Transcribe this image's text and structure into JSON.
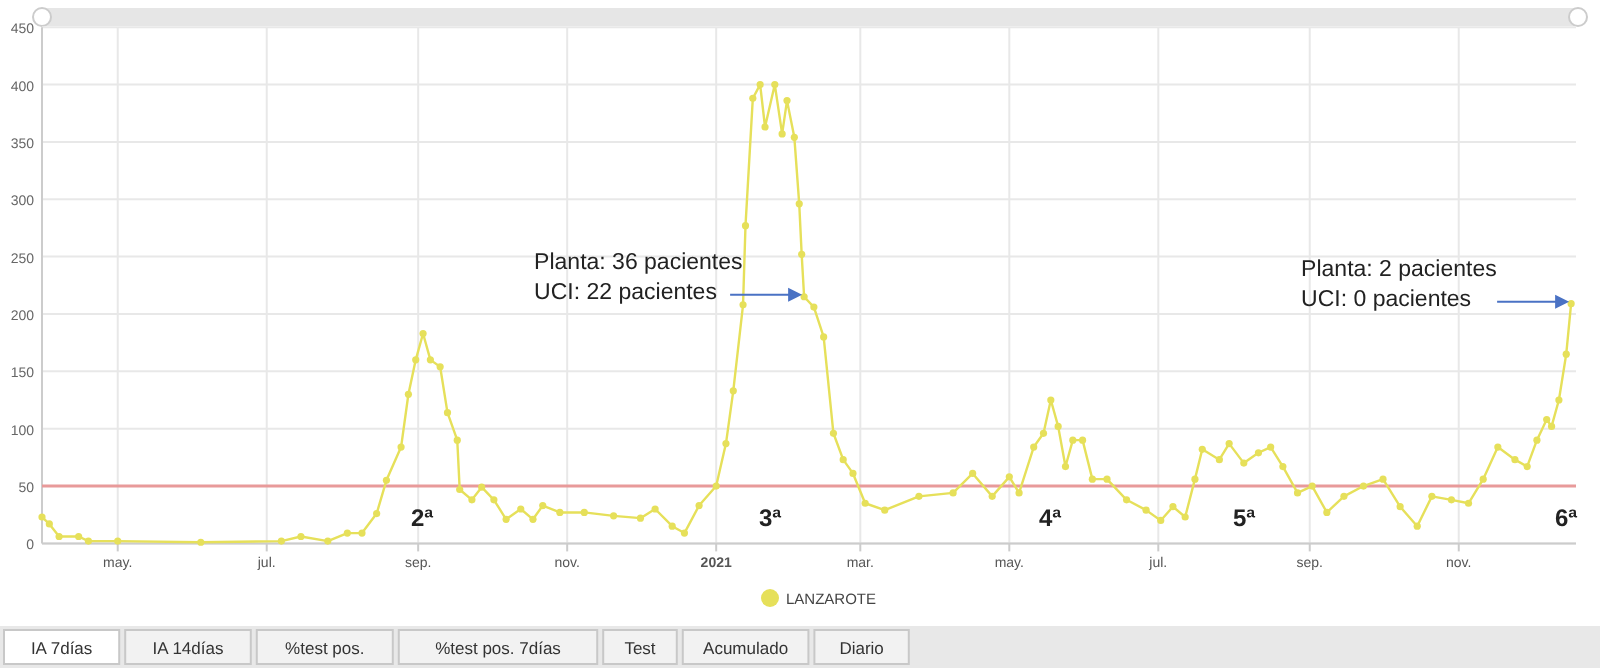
{
  "chart_data": {
    "type": "line",
    "xlim": [
      "2020-03-31",
      "2021-12-19"
    ],
    "ylim": [
      0,
      450
    ],
    "xticks": [
      {
        "value": "2020-05-01",
        "label": "may."
      },
      {
        "value": "2020-07-01",
        "label": "jul."
      },
      {
        "value": "2020-09-01",
        "label": "sep."
      },
      {
        "value": "2020-11-01",
        "label": "nov."
      },
      {
        "value": "2021-01-01",
        "label": "2021"
      },
      {
        "value": "2021-03-01",
        "label": "mar."
      },
      {
        "value": "2021-05-01",
        "label": "may."
      },
      {
        "value": "2021-07-01",
        "label": "jul."
      },
      {
        "value": "2021-09-01",
        "label": "sep."
      },
      {
        "value": "2021-11-01",
        "label": "nov."
      }
    ],
    "yticks": [
      0,
      50,
      100,
      150,
      200,
      250,
      300,
      350,
      400,
      450
    ],
    "grid": true,
    "legend": "bottom",
    "marker": "circle",
    "ref_lines": [
      {
        "axis": "y",
        "value": 50,
        "color": "#e89a9a"
      }
    ],
    "series": [
      {
        "name": "LANZAROTE",
        "color": "#e6e05a",
        "x": [
          "2020-03-31",
          "2020-04-03",
          "2020-04-07",
          "2020-04-15",
          "2020-04-19",
          "2020-05-01",
          "2020-06-04",
          "2020-07-07",
          "2020-07-15",
          "2020-07-26",
          "2020-08-03",
          "2020-08-09",
          "2020-08-15",
          "2020-08-19",
          "2020-08-25",
          "2020-08-28",
          "2020-08-31",
          "2020-09-03",
          "2020-09-06",
          "2020-09-10",
          "2020-09-13",
          "2020-09-17",
          "2020-09-18",
          "2020-09-23",
          "2020-09-27",
          "2020-10-02",
          "2020-10-07",
          "2020-10-13",
          "2020-10-18",
          "2020-10-22",
          "2020-10-29",
          "2020-11-08",
          "2020-11-20",
          "2020-12-01",
          "2020-12-07",
          "2020-12-14",
          "2020-12-19",
          "2020-12-25",
          "2021-01-01",
          "2021-01-05",
          "2021-01-08",
          "2021-01-12",
          "2021-01-13",
          "2021-01-16",
          "2021-01-19",
          "2021-01-21",
          "2021-01-25",
          "2021-01-28",
          "2021-01-30",
          "2021-02-02",
          "2021-02-04",
          "2021-02-05",
          "2021-02-06",
          "2021-02-10",
          "2021-02-14",
          "2021-02-18",
          "2021-02-22",
          "2021-02-26",
          "2021-03-03",
          "2021-03-11",
          "2021-03-25",
          "2021-04-08",
          "2021-04-16",
          "2021-04-24",
          "2021-05-01",
          "2021-05-05",
          "2021-05-11",
          "2021-05-15",
          "2021-05-18",
          "2021-05-21",
          "2021-05-24",
          "2021-05-27",
          "2021-05-31",
          "2021-06-04",
          "2021-06-10",
          "2021-06-18",
          "2021-06-26",
          "2021-07-02",
          "2021-07-07",
          "2021-07-12",
          "2021-07-16",
          "2021-07-19",
          "2021-07-26",
          "2021-07-30",
          "2021-08-05",
          "2021-08-11",
          "2021-08-16",
          "2021-08-21",
          "2021-08-27",
          "2021-09-02",
          "2021-09-08",
          "2021-09-15",
          "2021-09-23",
          "2021-10-01",
          "2021-10-08",
          "2021-10-15",
          "2021-10-21",
          "2021-10-29",
          "2021-11-05",
          "2021-11-11",
          "2021-11-17",
          "2021-11-24",
          "2021-11-29",
          "2021-12-03",
          "2021-12-07",
          "2021-12-09",
          "2021-12-12",
          "2021-12-15",
          "2021-12-17"
        ],
        "values": [
          23,
          17,
          6,
          6,
          2,
          2,
          1,
          2,
          6,
          2,
          9,
          9,
          26,
          55,
          84,
          130,
          160,
          183,
          160,
          154,
          114,
          90,
          47,
          38,
          49,
          38,
          21,
          30,
          21,
          33,
          27,
          27,
          24,
          22,
          30,
          15,
          9,
          33,
          50,
          87,
          133,
          208,
          277,
          388,
          400,
          363,
          400,
          357,
          386,
          354,
          296,
          252,
          215,
          206,
          180,
          96,
          73,
          61,
          35,
          29,
          41,
          44,
          61,
          41,
          58,
          44,
          84,
          96,
          125,
          102,
          67,
          90,
          90,
          56,
          56,
          38,
          29,
          20,
          32,
          23,
          56,
          82,
          73,
          87,
          70,
          79,
          84,
          67,
          44,
          50,
          27,
          41,
          50,
          56,
          32,
          15,
          41,
          38,
          35,
          56,
          84,
          73,
          67,
          90,
          108,
          102,
          125,
          165,
          209
        ]
      }
    ],
    "annotations": [
      {
        "text": "Planta: 36 pacientes\nUCI: 22 pacientes",
        "x": "2021-02-06",
        "y": 215
      },
      {
        "text": "Planta: 2 pacientes\nUCI: 0 pacientes",
        "x": "2021-12-17",
        "y": 209
      },
      "2ª",
      "3ª",
      "4ª",
      "5ª",
      "6ª",
      "IA 7días",
      "IA 14días",
      "%test pos.",
      "%test pos. 7días",
      "Test",
      "Acumulado",
      "Diario"
    ]
  }
}
